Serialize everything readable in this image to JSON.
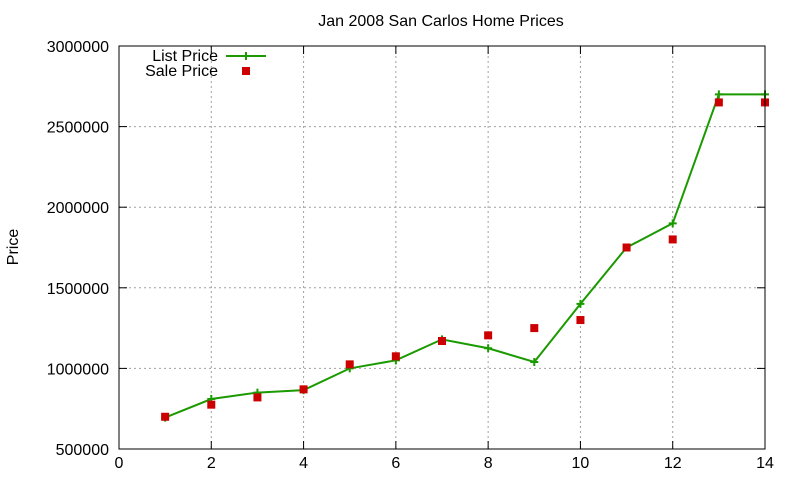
{
  "chart_data": {
    "type": "line",
    "title": "Jan 2008 San Carlos Home Prices",
    "xlabel": "",
    "ylabel": "Price",
    "xlim": [
      0,
      14
    ],
    "ylim": [
      500000,
      3000000
    ],
    "xticks": [
      0,
      2,
      4,
      6,
      8,
      10,
      12,
      14
    ],
    "yticks": [
      500000,
      1000000,
      1500000,
      2000000,
      2500000,
      3000000
    ],
    "x_tick_labels": [
      "0",
      "2",
      "4",
      "6",
      "8",
      "10",
      "12",
      "14"
    ],
    "y_tick_labels": [
      "500000",
      "1000000",
      "1500000",
      "2000000",
      "2500000",
      "3000000"
    ],
    "grid": true,
    "legend_position": "top-left",
    "series": [
      {
        "name": "List Price",
        "style": "line-with-plus-markers",
        "color": "#1a9a00",
        "x": [
          1,
          2,
          3,
          4,
          5,
          6,
          7,
          8,
          9,
          10,
          11,
          12,
          13,
          14
        ],
        "y": [
          695000,
          810000,
          850000,
          865000,
          1000000,
          1050000,
          1180000,
          1125000,
          1040000,
          1400000,
          1750000,
          1900000,
          2700000,
          2700000
        ]
      },
      {
        "name": "Sale Price",
        "style": "square-markers",
        "color": "#cc0000",
        "x": [
          1,
          2,
          3,
          4,
          5,
          6,
          7,
          8,
          9,
          10,
          11,
          12,
          13,
          14
        ],
        "y": [
          700000,
          775000,
          820000,
          870000,
          1025000,
          1075000,
          1170000,
          1205000,
          1250000,
          1300000,
          1750000,
          1800000,
          2650000,
          2650000
        ]
      }
    ]
  }
}
